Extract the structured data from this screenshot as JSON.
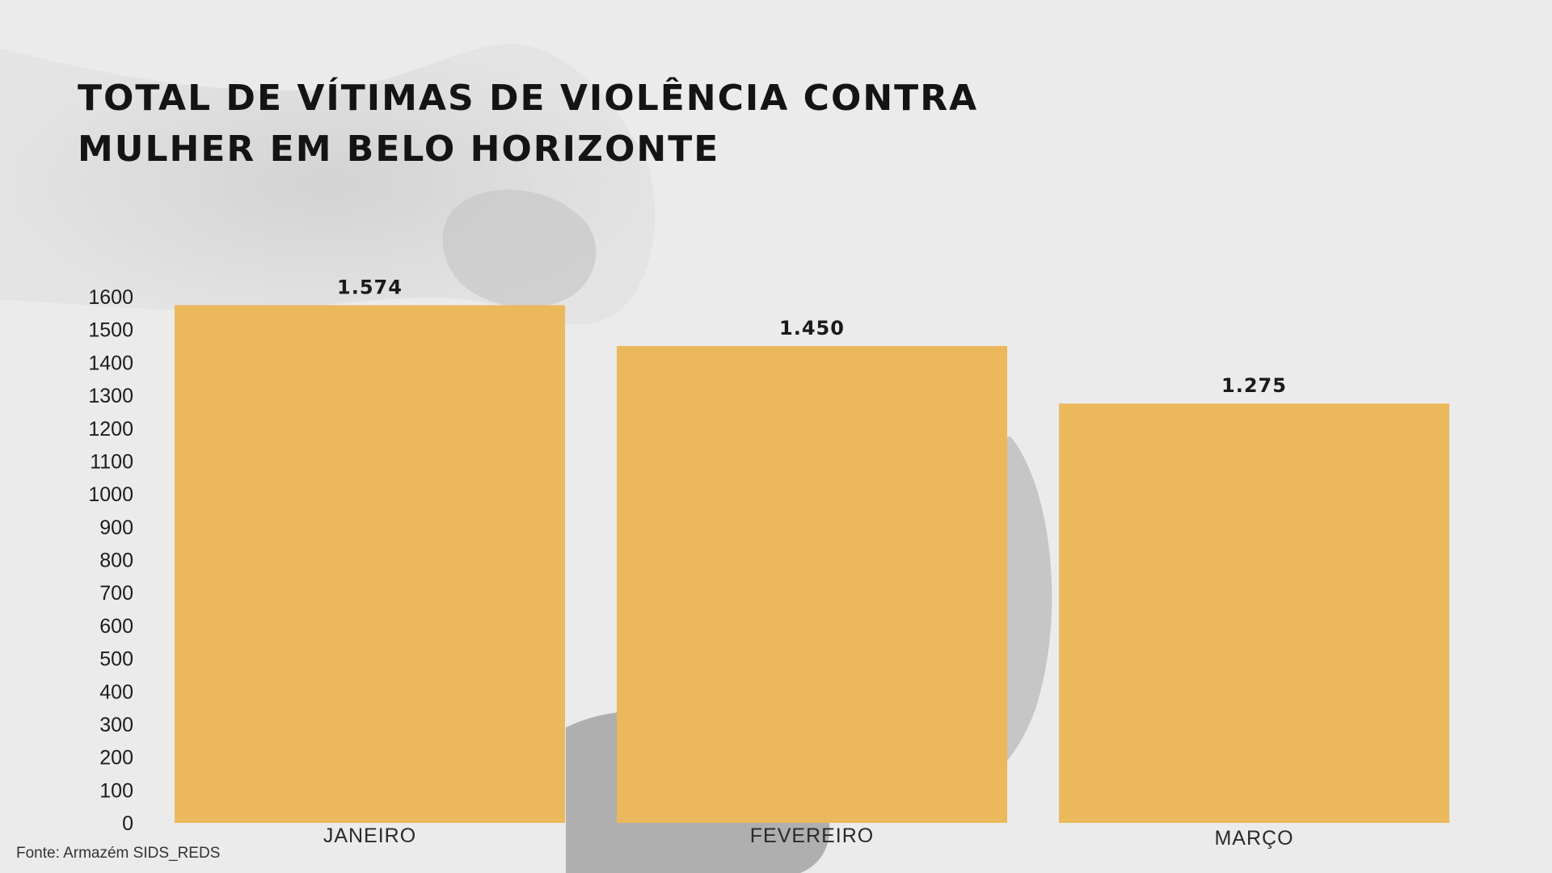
{
  "colors": {
    "bar": "#ebb85b",
    "background": "#ebebeb"
  },
  "chart_data": {
    "type": "bar",
    "title": "TOTAL DE VÍTIMAS DE VIOLÊNCIA CONTRA MULHER EM BELO HORIZONTE",
    "title_lines": [
      "TOTAL DE VÍTIMAS DE VIOLÊNCIA CONTRA",
      "MULHER EM BELO HORIZONTE"
    ],
    "categories": [
      "JANEIRO",
      "FEVEREIRO",
      "MARÇO"
    ],
    "values": [
      1574,
      1450,
      1275
    ],
    "data_labels": [
      "1.574",
      "1.450",
      "1.275"
    ],
    "yticks": [
      0,
      100,
      200,
      300,
      400,
      500,
      600,
      700,
      800,
      900,
      1000,
      1100,
      1200,
      1300,
      1400,
      1500,
      1600
    ],
    "ylim": [
      0,
      1600
    ],
    "xlabel": "",
    "ylabel": "",
    "grid": false,
    "legend": "none"
  },
  "source": "Fonte: Armazém SIDS_REDS"
}
